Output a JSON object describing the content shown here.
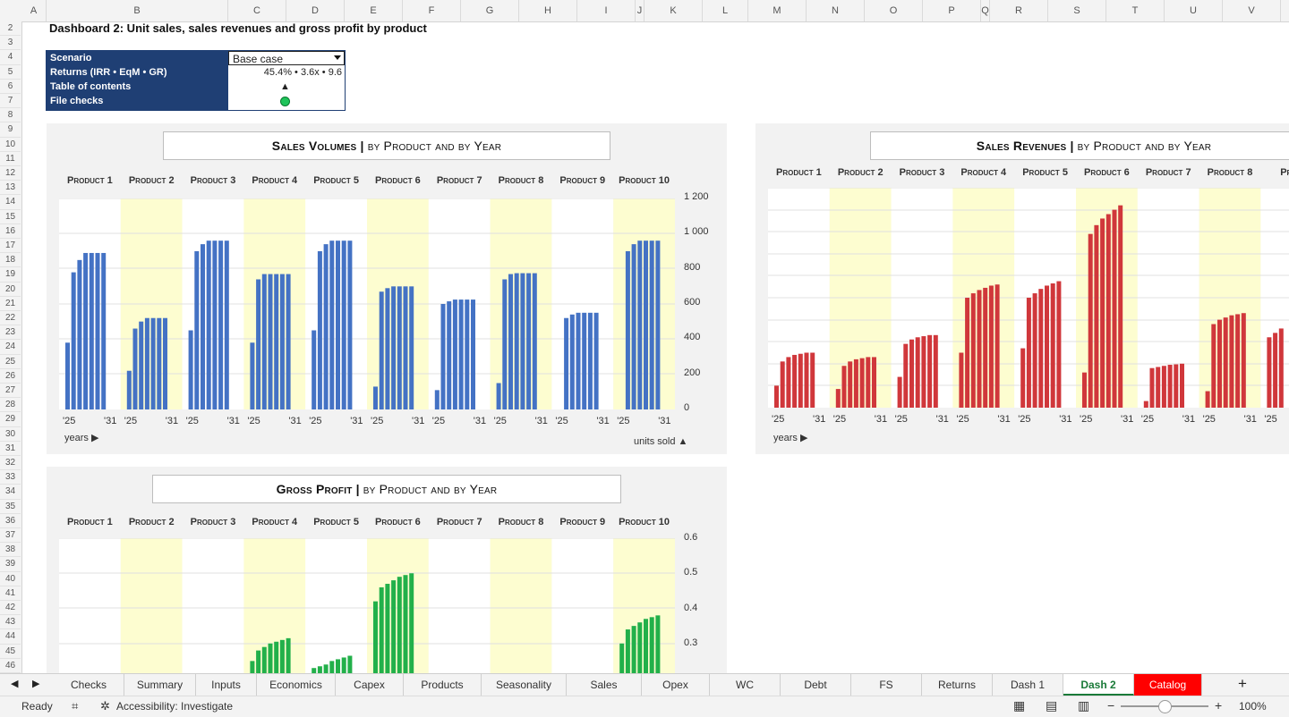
{
  "columns": [
    {
      "l": "A",
      "w": 28
    },
    {
      "l": "B",
      "w": 203
    },
    {
      "l": "C",
      "w": 65
    },
    {
      "l": "D",
      "w": 65
    },
    {
      "l": "E",
      "w": 65
    },
    {
      "l": "F",
      "w": 65
    },
    {
      "l": "G",
      "w": 65
    },
    {
      "l": "H",
      "w": 65
    },
    {
      "l": "I",
      "w": 65
    },
    {
      "l": "J",
      "w": 10
    },
    {
      "l": "K",
      "w": 65
    },
    {
      "l": "L",
      "w": 51
    },
    {
      "l": "M",
      "w": 65
    },
    {
      "l": "N",
      "w": 65
    },
    {
      "l": "O",
      "w": 65
    },
    {
      "l": "P",
      "w": 65
    },
    {
      "l": "Q",
      "w": 10
    },
    {
      "l": "R",
      "w": 65
    },
    {
      "l": "S",
      "w": 65
    },
    {
      "l": "T",
      "w": 65
    },
    {
      "l": "U",
      "w": 65
    },
    {
      "l": "V",
      "w": 65
    }
  ],
  "rows": [
    "2",
    "3",
    "4",
    "5",
    "6",
    "7",
    "8",
    "9",
    "10",
    "11",
    "12",
    "13",
    "14",
    "15",
    "16",
    "17",
    "18",
    "19",
    "20",
    "21",
    "22",
    "23",
    "24",
    "25",
    "26",
    "27",
    "28",
    "29",
    "30",
    "31",
    "32",
    "33",
    "34",
    "35",
    "36",
    "37",
    "38",
    "39",
    "40",
    "41",
    "42",
    "43",
    "44",
    "45",
    "46"
  ],
  "sheet_title": "Dashboard 2: Unit sales, sales revenues and gross profit by product",
  "controls": {
    "scenario_label": "Scenario",
    "scenario_value": "Base case",
    "returns_label": "Returns (IRR • EqM • GR)",
    "returns_value": "45.4% • 3.6x • 9.6",
    "toc_label": "Table of contents",
    "toc_icon": "▲",
    "checks_label": "File checks"
  },
  "volumes": {
    "title_bold": "Sales Volumes |",
    "title_rest": " by Product and by Year",
    "products": [
      "Product 1",
      "Product 2",
      "Product 3",
      "Product 4",
      "Product 5",
      "Product 6",
      "Product 7",
      "Product 8",
      "Product 9",
      "Product 10"
    ],
    "yticks": [
      "1 200",
      "1 000",
      "800",
      "600",
      "400",
      "200",
      "0"
    ],
    "xstart": "'25",
    "xend": "'31",
    "xnote": "years ▶",
    "ynote": "units sold ▲"
  },
  "revenues": {
    "title_bold": "Sales Revenues |",
    "title_rest": " by Product and by Year",
    "products": [
      "Product 1",
      "Product 2",
      "Product 3",
      "Product 4",
      "Product 5",
      "Product 6",
      "Product 7",
      "Product 8",
      "Prod"
    ],
    "xnote": "years ▶"
  },
  "gross": {
    "title_bold": "Gross Profit |",
    "title_rest": " by Product and by Year",
    "products": [
      "Product 1",
      "Product 2",
      "Product 3",
      "Product 4",
      "Product 5",
      "Product 6",
      "Product 7",
      "Product 8",
      "Product 9",
      "Product 10"
    ],
    "yticks": [
      "0.6",
      "0.5",
      "0.4",
      "0.3"
    ]
  },
  "chart_data": [
    {
      "type": "bar",
      "name": "Sales Volumes",
      "color": "#4472c4",
      "ylim": [
        0,
        1200
      ],
      "series": [
        [
          380,
          780,
          850,
          890,
          890,
          890,
          890
        ],
        [
          220,
          460,
          500,
          520,
          520,
          520,
          520
        ],
        [
          450,
          900,
          940,
          960,
          960,
          960,
          960
        ],
        [
          380,
          740,
          770,
          770,
          770,
          770,
          770
        ],
        [
          450,
          900,
          940,
          960,
          960,
          960,
          960
        ],
        [
          130,
          670,
          690,
          700,
          700,
          700,
          700
        ],
        [
          110,
          600,
          615,
          625,
          625,
          625,
          625
        ],
        [
          150,
          740,
          770,
          775,
          775,
          775,
          775
        ],
        [
          0,
          520,
          540,
          550,
          550,
          550,
          550
        ],
        [
          0,
          900,
          940,
          960,
          960,
          960,
          960
        ]
      ]
    },
    {
      "type": "bar",
      "name": "Sales Revenues",
      "color": "#d0373b",
      "series": [
        [
          0.1,
          0.21,
          0.23,
          0.24,
          0.245,
          0.25,
          0.25
        ],
        [
          0.085,
          0.19,
          0.21,
          0.22,
          0.225,
          0.23,
          0.23
        ],
        [
          0.14,
          0.29,
          0.31,
          0.32,
          0.325,
          0.33,
          0.33
        ],
        [
          0.25,
          0.5,
          0.52,
          0.535,
          0.545,
          0.555,
          0.56
        ],
        [
          0.27,
          0.5,
          0.52,
          0.54,
          0.555,
          0.565,
          0.575
        ],
        [
          0.16,
          0.79,
          0.83,
          0.86,
          0.88,
          0.9,
          0.92
        ],
        [
          0.03,
          0.18,
          0.185,
          0.19,
          0.195,
          0.197,
          0.2
        ],
        [
          0.075,
          0.38,
          0.4,
          0.41,
          0.42,
          0.425,
          0.43
        ],
        [
          0.32,
          0.34,
          0.36
        ]
      ]
    },
    {
      "type": "bar",
      "name": "Gross Profit",
      "color": "#22b04a",
      "ylim": [
        0.2,
        0.6
      ],
      "series": [
        [
          0,
          0,
          0,
          0,
          0,
          0,
          0
        ],
        [
          0,
          0,
          0,
          0,
          0,
          0,
          0
        ],
        [
          0,
          0,
          0,
          0,
          0,
          0,
          0
        ],
        [
          0.25,
          0.28,
          0.29,
          0.3,
          0.305,
          0.31,
          0.315
        ],
        [
          0.23,
          0.235,
          0.24,
          0.25,
          0.255,
          0.26,
          0.265
        ],
        [
          0.42,
          0.46,
          0.47,
          0.48,
          0.49,
          0.495,
          0.5
        ],
        [
          0,
          0,
          0,
          0,
          0,
          0,
          0
        ],
        [
          0,
          0,
          0,
          0,
          0.205,
          0.205,
          0.205
        ],
        [
          0,
          0,
          0,
          0,
          0,
          0,
          0
        ],
        [
          0.3,
          0.34,
          0.35,
          0.36,
          0.37,
          0.375,
          0.38
        ]
      ]
    }
  ],
  "tabs": [
    {
      "label": "Checks",
      "w": 79
    },
    {
      "label": "Summary",
      "w": 80
    },
    {
      "label": "Inputs",
      "w": 68
    },
    {
      "label": "Economics",
      "w": 88
    },
    {
      "label": "Capex",
      "w": 76
    },
    {
      "label": "Products",
      "w": 87
    },
    {
      "label": "Seasonality",
      "w": 95
    },
    {
      "label": "Sales",
      "w": 84
    },
    {
      "label": "Opex",
      "w": 76
    },
    {
      "label": "WC",
      "w": 79
    },
    {
      "label": "Debt",
      "w": 79
    },
    {
      "label": "FS",
      "w": 79
    },
    {
      "label": "Returns",
      "w": 79
    },
    {
      "label": "Dash 1",
      "w": 79
    },
    {
      "label": "Dash 2",
      "w": 79,
      "active": true
    },
    {
      "label": "Catalog",
      "w": 76,
      "red": true
    }
  ],
  "status": {
    "ready": "Ready",
    "accessibility": "Accessibility: Investigate",
    "zoom": "100%"
  }
}
